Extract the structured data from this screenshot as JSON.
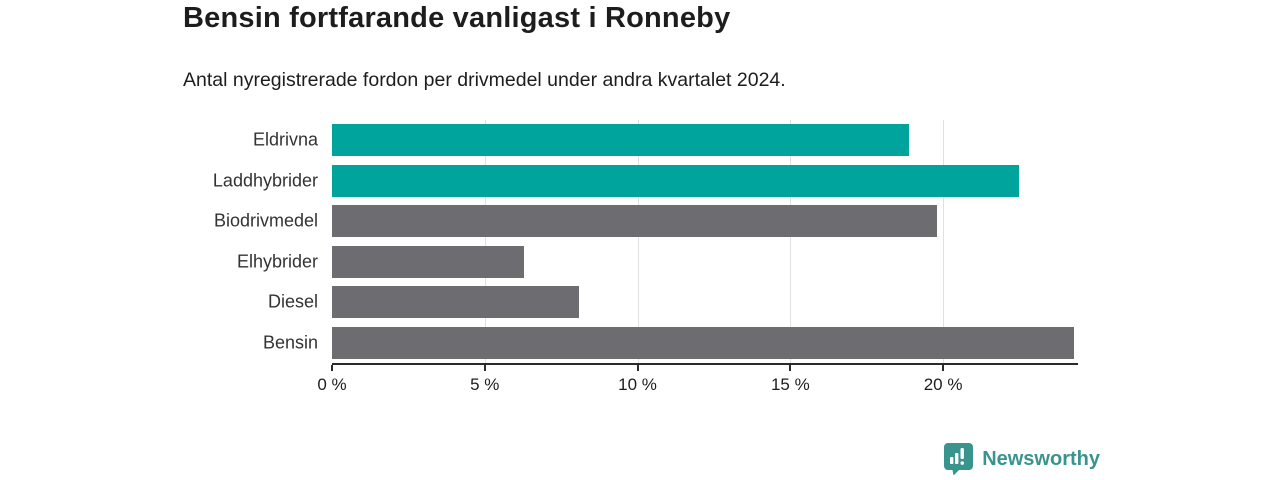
{
  "header": {
    "title": "Bensin fortfarande vanligast i Ronneby",
    "subtitle": "Antal nyregistrerade fordon per drivmedel under andra kvartalet 2024."
  },
  "chart_data": {
    "type": "bar",
    "orientation": "horizontal",
    "title": "Bensin fortfarande vanligast i Ronneby",
    "subtitle": "Antal nyregistrerade fordon per drivmedel under andra kvartalet 2024.",
    "categories": [
      "Eldrivna",
      "Laddhybrider",
      "Biodrivmedel",
      "Elhybrider",
      "Diesel",
      "Bensin"
    ],
    "values": [
      18.9,
      22.5,
      19.8,
      6.3,
      8.1,
      24.3
    ],
    "unit": "%",
    "bar_colors": [
      "#00a49c",
      "#00a49c",
      "#6c6c71",
      "#6c6c71",
      "#6c6c71",
      "#6c6c71"
    ],
    "xticks": [
      0,
      5,
      10,
      15,
      20
    ],
    "xtick_labels": [
      "0 %",
      "5 %",
      "10 %",
      "15 %",
      "20 %"
    ],
    "xlim": [
      0,
      24.35
    ],
    "grid": true,
    "legend": "none"
  },
  "footer": {
    "brand": "Newsworthy",
    "brand_color": "#3a948e"
  },
  "colors": {
    "accent_teal": "#00a49c",
    "neutral_gray": "#6c6c71",
    "grid": "#e0e0e0",
    "axis": "#2b2b2b",
    "text": "#1d1d1d"
  }
}
